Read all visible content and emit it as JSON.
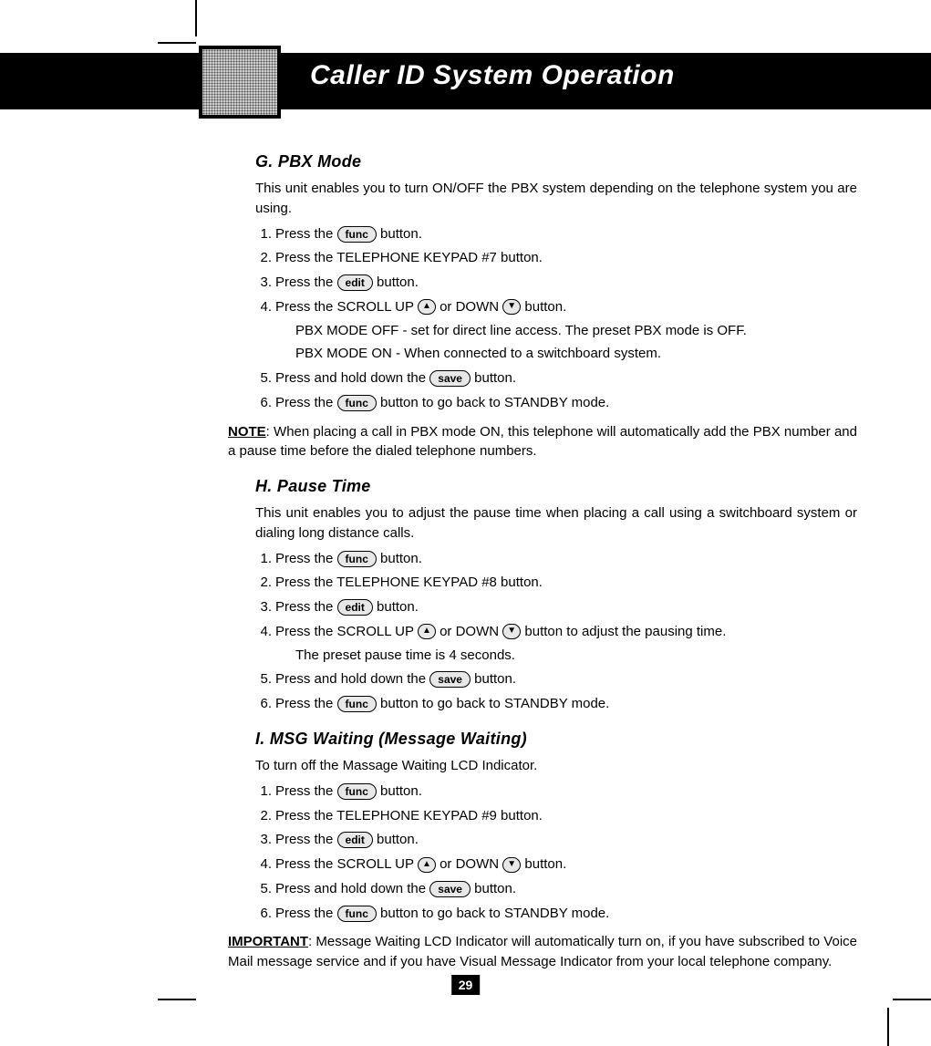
{
  "header": {
    "title": "Caller ID System Operation"
  },
  "buttons": {
    "func": "func",
    "edit": "edit",
    "save": "save",
    "up": "▲",
    "down": "▼"
  },
  "sections": {
    "g": {
      "title": "G. PBX Mode",
      "intro": "This unit enables you to turn ON/OFF the PBX system depending on the telephone system you are using.",
      "s1a": "Press the ",
      "s1b": " button.",
      "s2": "Press the TELEPHONE KEYPAD #7 button.",
      "s3a": "Press the ",
      "s3b": " button.",
      "s4a": "Press the SCROLL UP ",
      "s4b": " or DOWN ",
      "s4c": " button.",
      "s4d": "PBX MODE OFF - set for direct line access. The preset PBX mode is OFF.",
      "s4e": "PBX MODE ON - When connected to a switchboard system.",
      "s5a": "Press and hold down the ",
      "s5b": " button.",
      "s6a": "Press the ",
      "s6b": " button to go back to STANDBY mode."
    },
    "h": {
      "title": "H. Pause Time",
      "intro": "This unit enables you to adjust the pause time when placing a call using a switchboard system or dialing long distance calls.",
      "s1a": "Press the ",
      "s1b": " button.",
      "s2": "Press the TELEPHONE KEYPAD #8 button.",
      "s3a": "Press the ",
      "s3b": " button.",
      "s4a": "Press the SCROLL UP ",
      "s4b": " or DOWN ",
      "s4c": " button to adjust the pausing time.",
      "s4d": "The preset pause time is 4 seconds.",
      "s5a": "Press and hold down the ",
      "s5b": " button.",
      "s6a": "Press the ",
      "s6b": " button to go back to STANDBY mode."
    },
    "i": {
      "title": "I. MSG Waiting (Message Waiting)",
      "intro": "To turn off the Massage Waiting LCD Indicator.",
      "s1a": "Press the ",
      "s1b": " button.",
      "s2": "Press the TELEPHONE KEYPAD #9 button.",
      "s3a": "Press the ",
      "s3b": " button.",
      "s4a": "Press the SCROLL UP ",
      "s4b": " or DOWN ",
      "s4c": " button.",
      "s5a": "Press and hold down the ",
      "s5b": " button.",
      "s6a": "Press the ",
      "s6b": " button to go back to STANDBY mode."
    }
  },
  "note": {
    "label": "NOTE",
    "text": ": When placing a call in PBX mode ON, this telephone will automatically add the PBX number and a pause time before the dialed telephone numbers."
  },
  "important": {
    "label": "IMPORTANT",
    "text": ": Message Waiting LCD Indicator will automatically turn on, if you have subscribed to Voice Mail message service and if you have Visual Message Indicator from your local telephone company."
  },
  "pageNumber": "29"
}
